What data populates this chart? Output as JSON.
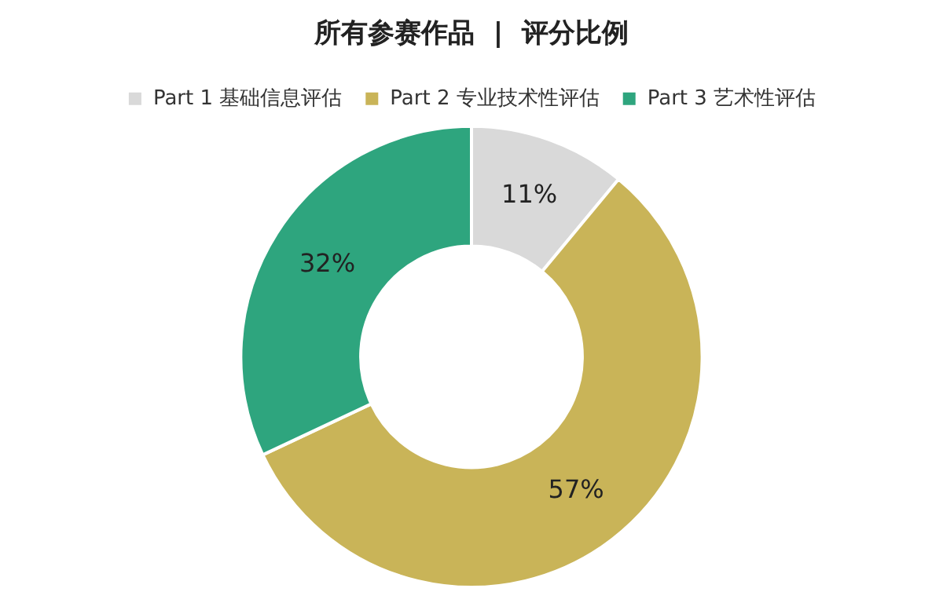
{
  "chart_data": {
    "type": "donut",
    "title": "所有参赛作品  |  评分比例",
    "categories": [
      "Part 1 基础信息评估",
      "Part 2 专业技术性评估",
      "Part 3 艺术性评估"
    ],
    "values": [
      11,
      57,
      32
    ],
    "value_labels": [
      "11%",
      "57%",
      "32%"
    ],
    "colors": [
      "#d9d9d9",
      "#c9b458",
      "#2ea57e"
    ],
    "legend": "top"
  }
}
